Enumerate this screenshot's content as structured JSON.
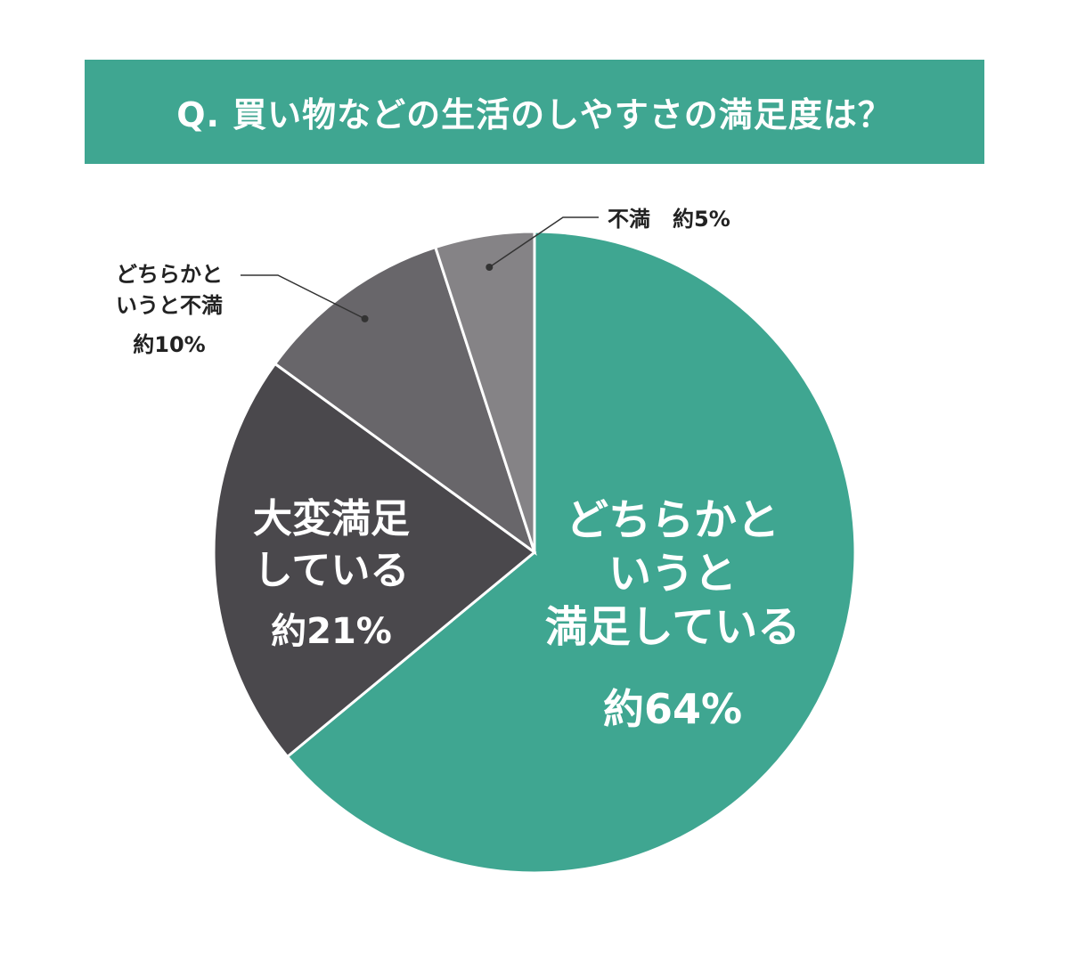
{
  "title": "Q. 買い物などの生活のしやすさの満足度は？",
  "colors": {
    "accent": "#3fa691",
    "slice_somewhat_satisfied": "#3fa691",
    "slice_very_satisfied": "#4a484c",
    "slice_somewhat_unsatisfied": "#68666a",
    "slice_unsatisfied": "#858386",
    "leader_line": "#333333"
  },
  "chart_data": {
    "type": "pie",
    "title": "Q. 買い物などの生活のしやすさの満足度は？",
    "start": "12 o'clock, clockwise",
    "slices": [
      {
        "label_lines": [
          "どちらかと",
          "いうと",
          "満足している"
        ],
        "value_label": "約64%",
        "value": 64
      },
      {
        "label_lines": [
          "大変満足",
          "している"
        ],
        "value_label": "約21%",
        "value": 21
      },
      {
        "label_lines": [
          "どちらかと",
          "いうと不満"
        ],
        "value_label": "約10%",
        "value": 10
      },
      {
        "label_lines": [
          "不満"
        ],
        "value_label": "約5%",
        "value": 5
      }
    ]
  }
}
